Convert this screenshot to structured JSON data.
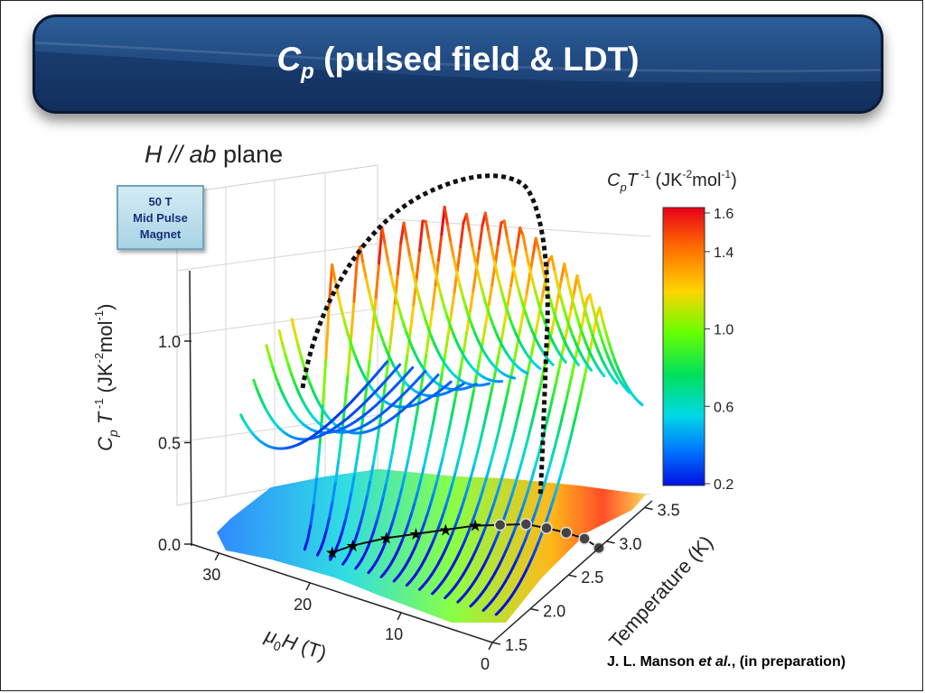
{
  "slide": {
    "title_prefix": "C",
    "title_sub": "p",
    "title_suffix": " (pulsed field & LDT)",
    "citation_author": "J. L. Manson ",
    "citation_etal": "et al.",
    "citation_rest": ", (in preparation)"
  },
  "badge": {
    "line1": "50 T",
    "line2": "Mid Pulse",
    "line3": "Magnet"
  },
  "chart_data": {
    "type": "surface-3d",
    "plane_label_italic": "H // ab",
    "plane_label_rest": " plane",
    "z_axis": {
      "label": "C_p T^-1 (JK^-2 mol^-1)",
      "ticks": [
        "0.0",
        "0.5",
        "1.0"
      ],
      "tick_values": [
        0.0,
        0.5,
        1.0
      ]
    },
    "field_axis": {
      "label": "μ0H (T)",
      "ticks": [
        "0",
        "10",
        "20",
        "30"
      ],
      "tick_values": [
        0,
        10,
        20,
        30
      ]
    },
    "temperature_axis": {
      "label": "Temperature (K)",
      "ticks": [
        "1.5",
        "2.0",
        "2.5",
        "3.0",
        "3.5"
      ],
      "tick_values": [
        1.5,
        2.0,
        2.5,
        3.0,
        3.5
      ]
    },
    "colorbar": {
      "title": "C_p T^-1 (JK^-2 mol^-1)",
      "ticks": [
        "1.6",
        "1.4",
        "1.0",
        "0.6",
        "0.2"
      ],
      "tick_values": [
        1.6,
        1.4,
        1.0,
        0.6,
        0.2
      ],
      "colors": [
        "#e8001a",
        "#ff6a00",
        "#ffd400",
        "#66ff00",
        "#00e05a",
        "#00d8e8",
        "#0070ff",
        "#0010e0"
      ]
    },
    "phase_boundary": {
      "field_T": [
        0,
        2,
        4,
        6,
        8,
        10,
        12,
        14,
        16,
        18,
        20,
        21
      ],
      "temperature_K": [
        2.9,
        2.95,
        2.95,
        2.93,
        2.9,
        2.8,
        2.7,
        2.55,
        2.4,
        2.25,
        2.05,
        1.9
      ]
    },
    "peak_ridge": {
      "field_T": [
        0,
        5,
        10,
        15,
        20,
        25,
        28
      ],
      "cpT_peak": [
        1.2,
        1.35,
        1.55,
        1.6,
        1.5,
        1.2,
        0.75
      ]
    }
  }
}
